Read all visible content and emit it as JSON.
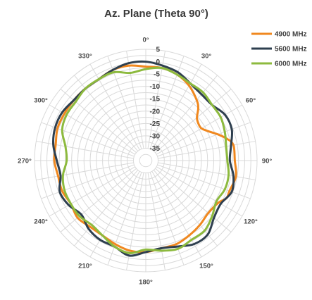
{
  "chart_data": {
    "type": "polar-line",
    "title": "Az. Plane (Theta 90°)",
    "angle_labels": [
      "0°",
      "30°",
      "60°",
      "90°",
      "120°",
      "150°",
      "180°",
      "210°",
      "240°",
      "270°",
      "300°",
      "330°"
    ],
    "radial_ticks": [
      5,
      0,
      -5,
      -10,
      -15,
      -20,
      -25,
      -30,
      -35
    ],
    "r_range": [
      -40,
      5
    ],
    "legend_position": "top-right",
    "grid": true,
    "series": [
      {
        "name": "4900 MHz",
        "color": "#f0881f",
        "points": [
          [
            0,
            -2
          ],
          [
            10,
            -2
          ],
          [
            20,
            -3
          ],
          [
            30,
            -5
          ],
          [
            40,
            -8
          ],
          [
            45,
            -10
          ],
          [
            50,
            -13
          ],
          [
            55,
            -14
          ],
          [
            60,
            -14
          ],
          [
            65,
            -12
          ],
          [
            70,
            -9
          ],
          [
            75,
            -6
          ],
          [
            80,
            -4
          ],
          [
            90,
            -4
          ],
          [
            100,
            -3
          ],
          [
            110,
            -4
          ],
          [
            115,
            -4
          ],
          [
            120,
            -6
          ],
          [
            130,
            -7
          ],
          [
            140,
            -6
          ],
          [
            150,
            -5
          ],
          [
            160,
            -4
          ],
          [
            170,
            -4
          ],
          [
            180,
            -3
          ],
          [
            190,
            -3
          ],
          [
            200,
            -4
          ],
          [
            210,
            -5
          ],
          [
            220,
            -5
          ],
          [
            230,
            -4
          ],
          [
            240,
            -5
          ],
          [
            250,
            -4
          ],
          [
            260,
            -4
          ],
          [
            270,
            -3
          ],
          [
            280,
            -3
          ],
          [
            290,
            -2
          ],
          [
            300,
            -2
          ],
          [
            310,
            -2
          ],
          [
            320,
            -2
          ],
          [
            330,
            -2
          ],
          [
            340,
            -1
          ],
          [
            350,
            -1
          ],
          [
            360,
            -2
          ]
        ]
      },
      {
        "name": "5600 MHz",
        "color": "#2e3f4f",
        "points": [
          [
            0,
            0
          ],
          [
            10,
            -1
          ],
          [
            20,
            -2
          ],
          [
            30,
            -4
          ],
          [
            40,
            -5
          ],
          [
            50,
            -5
          ],
          [
            60,
            -3
          ],
          [
            70,
            -3
          ],
          [
            80,
            -5
          ],
          [
            90,
            -6
          ],
          [
            100,
            -4
          ],
          [
            110,
            -3
          ],
          [
            120,
            -5
          ],
          [
            130,
            -4
          ],
          [
            140,
            -1
          ],
          [
            150,
            -1
          ],
          [
            160,
            -3
          ],
          [
            170,
            -4
          ],
          [
            180,
            -3
          ],
          [
            190,
            -1
          ],
          [
            200,
            -3
          ],
          [
            210,
            -3
          ],
          [
            220,
            -4
          ],
          [
            230,
            -6
          ],
          [
            240,
            -4
          ],
          [
            250,
            -3
          ],
          [
            260,
            -5
          ],
          [
            270,
            -4
          ],
          [
            280,
            -2
          ],
          [
            290,
            -1
          ],
          [
            300,
            -1
          ],
          [
            310,
            -2
          ],
          [
            320,
            -2
          ],
          [
            330,
            -2
          ],
          [
            340,
            -1
          ],
          [
            350,
            0
          ],
          [
            360,
            0
          ]
        ]
      },
      {
        "name": "6000 MHz",
        "color": "#8dba3e",
        "points": [
          [
            0,
            -3
          ],
          [
            10,
            -2
          ],
          [
            20,
            -3
          ],
          [
            30,
            -4
          ],
          [
            40,
            -4
          ],
          [
            50,
            -5
          ],
          [
            60,
            -5
          ],
          [
            70,
            -6
          ],
          [
            80,
            -7
          ],
          [
            90,
            -7
          ],
          [
            100,
            -6
          ],
          [
            110,
            -6
          ],
          [
            120,
            -7
          ],
          [
            130,
            -5
          ],
          [
            140,
            -3
          ],
          [
            150,
            -3
          ],
          [
            160,
            -2
          ],
          [
            170,
            -3
          ],
          [
            180,
            -4
          ],
          [
            190,
            -2
          ],
          [
            200,
            -3
          ],
          [
            210,
            -5
          ],
          [
            220,
            -6
          ],
          [
            230,
            -5
          ],
          [
            240,
            -5
          ],
          [
            250,
            -5
          ],
          [
            260,
            -6
          ],
          [
            270,
            -8
          ],
          [
            280,
            -7
          ],
          [
            290,
            -4
          ],
          [
            300,
            -3
          ],
          [
            310,
            -3
          ],
          [
            320,
            -2
          ],
          [
            330,
            -2
          ],
          [
            340,
            -2
          ],
          [
            350,
            -4
          ],
          [
            360,
            -3
          ]
        ]
      }
    ]
  }
}
